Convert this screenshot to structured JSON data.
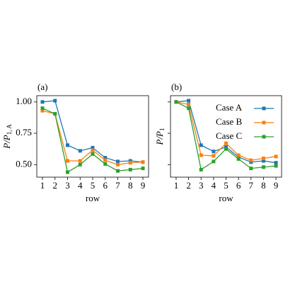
{
  "chart_data": [
    {
      "type": "line",
      "title": "(a)",
      "xlabel": "row",
      "ylabel": "P/P",
      "ylabel_subscript": "1, A",
      "x": [
        1,
        2,
        3,
        4,
        5,
        6,
        7,
        8,
        9
      ],
      "xlim": [
        0.55,
        9.45
      ],
      "xticks": [
        1,
        2,
        3,
        4,
        5,
        6,
        7,
        8,
        9
      ],
      "ylim": [
        0.4,
        1.05
      ],
      "yticks": [
        {
          "value": 0.5,
          "label": "0.50"
        },
        {
          "value": 0.75,
          "label": "0.75"
        },
        {
          "value": 1.0,
          "label": "1.00"
        }
      ],
      "series": [
        {
          "color": "#1f77b4",
          "values": [
            1.0,
            1.01,
            0.655,
            0.61,
            0.635,
            0.555,
            0.525,
            0.53,
            0.52
          ]
        },
        {
          "color": "#ff7f0e",
          "values": [
            0.93,
            0.905,
            0.53,
            0.53,
            0.615,
            0.535,
            0.5,
            0.515,
            0.52
          ]
        },
        {
          "color": "#2ca02c",
          "values": [
            0.95,
            0.905,
            0.44,
            0.5,
            0.585,
            0.505,
            0.45,
            0.46,
            0.47
          ]
        }
      ]
    },
    {
      "type": "line",
      "title": "(b)",
      "xlabel": "row",
      "ylabel": "P/P",
      "ylabel_subscript": "1",
      "x": [
        1,
        2,
        3,
        4,
        5,
        6,
        7,
        8,
        9
      ],
      "xlim": [
        0.55,
        9.45
      ],
      "xticks": [
        1,
        2,
        3,
        4,
        5,
        6,
        7,
        8,
        9
      ],
      "ylim": [
        0.4,
        1.05
      ],
      "yticks": [
        0.5,
        0.75,
        1.0
      ],
      "legend": "upper right",
      "series": [
        {
          "name": "Case A",
          "color": "#1f77b4",
          "values": [
            1.0,
            1.01,
            0.655,
            0.605,
            0.64,
            0.56,
            0.52,
            0.53,
            0.515
          ]
        },
        {
          "name": "Case B",
          "color": "#ff7f0e",
          "values": [
            1.0,
            0.98,
            0.575,
            0.57,
            0.67,
            0.575,
            0.535,
            0.55,
            0.565
          ]
        },
        {
          "name": "Case C",
          "color": "#2ca02c",
          "values": [
            1.0,
            0.95,
            0.46,
            0.525,
            0.625,
            0.545,
            0.47,
            0.48,
            0.49
          ]
        }
      ]
    }
  ]
}
